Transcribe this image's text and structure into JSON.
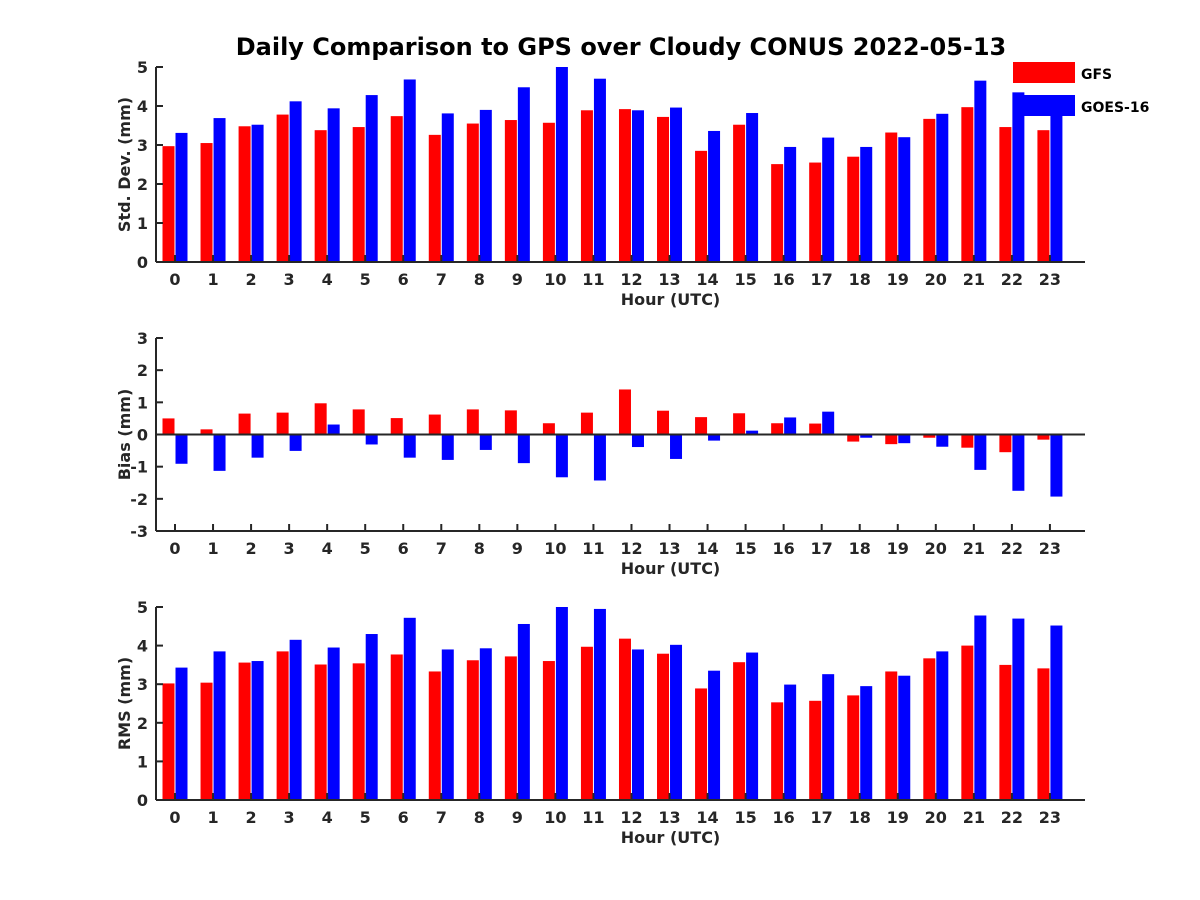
{
  "figure": {
    "title": "Daily Comparison to GPS over Cloudy CONUS 2022-05-13"
  },
  "colors": {
    "GFS": "#ff0000",
    "GOES-16": "#0000ff",
    "axis": "#262626"
  },
  "legend": {
    "placement": "top-right, outside plot area",
    "entries": [
      {
        "name": "GFS",
        "color": "#ff0000"
      },
      {
        "name": "GOES-16",
        "color": "#0000ff"
      }
    ]
  },
  "chart_data": [
    {
      "type": "bar",
      "ylabel": "Std. Dev. (mm)",
      "xlabel": "Hour (UTC)",
      "ylim": [
        0,
        5
      ],
      "yticks": [
        0,
        1,
        2,
        3,
        4,
        5
      ],
      "grid": false,
      "categories": [
        "0",
        "1",
        "2",
        "3",
        "4",
        "5",
        "6",
        "7",
        "8",
        "9",
        "10",
        "11",
        "12",
        "13",
        "14",
        "15",
        "16",
        "17",
        "18",
        "19",
        "20",
        "21",
        "22",
        "23"
      ],
      "series": [
        {
          "name": "GFS",
          "values": [
            2.97,
            3.05,
            3.48,
            3.78,
            3.38,
            3.46,
            3.74,
            3.26,
            3.55,
            3.64,
            3.57,
            3.89,
            3.92,
            3.72,
            2.85,
            3.52,
            2.51,
            2.55,
            2.7,
            3.32,
            3.67,
            3.97,
            3.46,
            3.38
          ]
        },
        {
          "name": "GOES-16",
          "values": [
            3.31,
            3.69,
            3.52,
            4.12,
            3.94,
            4.28,
            4.68,
            3.81,
            3.9,
            4.48,
            5.0,
            4.7,
            3.89,
            3.96,
            3.36,
            3.82,
            2.95,
            3.19,
            2.95,
            3.2,
            3.8,
            4.65,
            4.35,
            3.88
          ]
        }
      ]
    },
    {
      "type": "bar",
      "ylabel": "Bias (mm)",
      "xlabel": "Hour (UTC)",
      "ylim": [
        -3,
        3
      ],
      "yticks": [
        -3,
        -2,
        -1,
        0,
        1,
        2,
        3
      ],
      "grid": false,
      "zero_line": true,
      "categories": [
        "0",
        "1",
        "2",
        "3",
        "4",
        "5",
        "6",
        "7",
        "8",
        "9",
        "10",
        "11",
        "12",
        "13",
        "14",
        "15",
        "16",
        "17",
        "18",
        "19",
        "20",
        "21",
        "22",
        "23"
      ],
      "series": [
        {
          "name": "GFS",
          "values": [
            0.5,
            0.16,
            0.65,
            0.68,
            0.97,
            0.78,
            0.51,
            0.62,
            0.78,
            0.75,
            0.35,
            0.68,
            1.4,
            0.74,
            0.54,
            0.66,
            0.35,
            0.34,
            -0.22,
            -0.3,
            -0.1,
            -0.41,
            -0.55,
            -0.16
          ]
        },
        {
          "name": "GOES-16",
          "values": [
            -0.91,
            -1.13,
            -0.72,
            -0.51,
            0.31,
            -0.31,
            -0.72,
            -0.79,
            -0.48,
            -0.89,
            -1.33,
            -1.43,
            -0.39,
            -0.76,
            -0.19,
            0.12,
            0.53,
            0.71,
            -0.1,
            -0.27,
            -0.38,
            -1.1,
            -1.75,
            -1.93
          ]
        }
      ]
    },
    {
      "type": "bar",
      "ylabel": "RMS (mm)",
      "xlabel": "Hour (UTC)",
      "ylim": [
        0,
        5
      ],
      "yticks": [
        0,
        1,
        2,
        3,
        4,
        5
      ],
      "grid": false,
      "categories": [
        "0",
        "1",
        "2",
        "3",
        "4",
        "5",
        "6",
        "7",
        "8",
        "9",
        "10",
        "11",
        "12",
        "13",
        "14",
        "15",
        "16",
        "17",
        "18",
        "19",
        "20",
        "21",
        "22",
        "23"
      ],
      "series": [
        {
          "name": "GFS",
          "values": [
            3.02,
            3.04,
            3.56,
            3.85,
            3.51,
            3.54,
            3.77,
            3.33,
            3.62,
            3.72,
            3.6,
            3.97,
            4.18,
            3.79,
            2.89,
            3.57,
            2.53,
            2.57,
            2.71,
            3.33,
            3.67,
            4.0,
            3.5,
            3.41
          ]
        },
        {
          "name": "GOES-16",
          "values": [
            3.43,
            3.85,
            3.6,
            4.15,
            3.95,
            4.3,
            4.72,
            3.9,
            3.93,
            4.56,
            5.0,
            4.95,
            3.9,
            4.02,
            3.35,
            3.82,
            2.99,
            3.26,
            2.95,
            3.22,
            3.85,
            4.78,
            4.7,
            4.52
          ]
        }
      ]
    }
  ]
}
